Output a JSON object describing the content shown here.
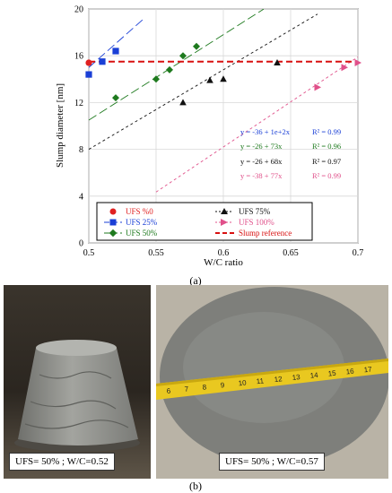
{
  "chart_data": {
    "type": "scatter",
    "xlabel": "W/C ratio",
    "ylabel": "Slump diameter [nm]",
    "xlim": [
      0.5,
      0.7
    ],
    "ylim": [
      0,
      20
    ],
    "xticks": [
      "0.5",
      "0.55",
      "0.6",
      "0.65",
      "0.7"
    ],
    "yticks": [
      "0",
      "4",
      "8",
      "12",
      "16",
      "20"
    ],
    "grid": true,
    "series": [
      {
        "name": "UFS %0",
        "color": "#e02020",
        "marker": "circle",
        "points": [
          [
            0.5,
            15.4
          ]
        ]
      },
      {
        "name": "UFS 25%",
        "color": "#1a3fd6",
        "marker": "square",
        "points": [
          [
            0.5,
            14.4
          ],
          [
            0.51,
            15.5
          ],
          [
            0.52,
            16.4
          ]
        ]
      },
      {
        "name": "UFS 50%",
        "color": "#1e7a1e",
        "marker": "diamond",
        "points": [
          [
            0.52,
            12.4
          ],
          [
            0.55,
            14.0
          ],
          [
            0.56,
            14.8
          ],
          [
            0.57,
            16.0
          ],
          [
            0.58,
            16.8
          ]
        ]
      },
      {
        "name": "UFS 75%",
        "color": "#111111",
        "marker": "triangle",
        "points": [
          [
            0.57,
            12.0
          ],
          [
            0.59,
            13.9
          ],
          [
            0.6,
            14.0
          ],
          [
            0.64,
            15.4
          ]
        ]
      },
      {
        "name": "UFS 100%",
        "color": "#e0508a",
        "marker": "triangle-right",
        "points": [
          [
            0.67,
            13.3
          ],
          [
            0.69,
            15.0
          ],
          [
            0.7,
            15.4
          ]
        ]
      }
    ],
    "fit_lines": [
      {
        "color": "#1a3fd6",
        "intercept": -36,
        "slope": 102,
        "dash": "10,4",
        "x_range": [
          0.5,
          0.54
        ]
      },
      {
        "color": "#1e7a1e",
        "intercept": -26,
        "slope": 73,
        "dash": "10,4",
        "x_range": [
          0.5,
          0.63
        ]
      },
      {
        "color": "#111111",
        "intercept": -26,
        "slope": 68,
        "dash": "3,3",
        "x_range": [
          0.5,
          0.67
        ]
      },
      {
        "color": "#e0508a",
        "intercept": -38,
        "slope": 77,
        "dash": "3,3",
        "x_range": [
          0.55,
          0.7
        ]
      }
    ],
    "slump_reference": {
      "name": "Slump reference",
      "value": 15.5,
      "color": "#d81010"
    },
    "equations": [
      {
        "text": "y = -36 + 1e+2x",
        "r2": "R² = 0.99",
        "color": "#1a3fd6"
      },
      {
        "text": "y = -26 + 73x",
        "r2": "R² = 0.96",
        "color": "#1e7a1e"
      },
      {
        "text": "y = -26 + 68x",
        "r2": "R² = 0.97",
        "color": "#111111"
      },
      {
        "text": "y = -38 + 77x",
        "r2": "R² = 0.99",
        "color": "#e0508a"
      }
    ],
    "legend_placement": "bottom"
  },
  "captions": {
    "a": "(a)",
    "b": "(b)"
  },
  "photos": {
    "left_label": "UFS= 50% ; W/C=0.52",
    "right_label": "UFS= 50% ; W/C=0.57",
    "tape_numbers": [
      "6",
      "7",
      "8",
      "9",
      "10",
      "11",
      "12",
      "13",
      "14",
      "15",
      "16",
      "17"
    ]
  },
  "colors": {
    "photo_background_left": "#2b2620",
    "photo_background_right": "#b9b3a6",
    "concrete": "#8e8f8c",
    "tape": "#e9c820"
  }
}
